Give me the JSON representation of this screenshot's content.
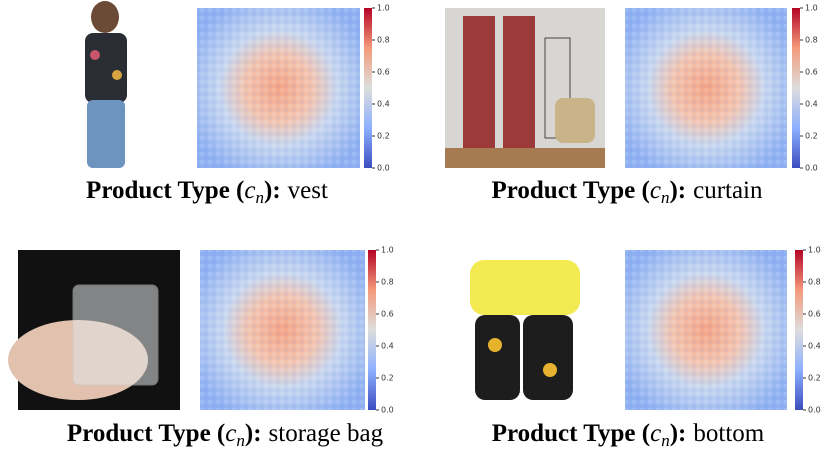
{
  "colorbar_ticks": [
    {
      "value": 0,
      "label": "0.0"
    },
    {
      "value": 0.2,
      "label": "0.2"
    },
    {
      "value": 0.4,
      "label": "0.4"
    },
    {
      "value": 0.6,
      "label": "0.6"
    },
    {
      "value": 0.8,
      "label": "0.8"
    },
    {
      "value": 1,
      "label": "1.0"
    }
  ],
  "panels": [
    {
      "caption": {
        "prefix": "Product Type (",
        "symbol": "c",
        "subscript": "n",
        "suffix": "):",
        "value": "vest"
      }
    },
    {
      "caption": {
        "prefix": "Product Type (",
        "symbol": "c",
        "subscript": "n",
        "suffix": "):",
        "value": "curtain"
      }
    },
    {
      "caption": {
        "prefix": "Product Type (",
        "symbol": "c",
        "subscript": "n",
        "suffix": "):",
        "value": "storage bag"
      }
    },
    {
      "caption": {
        "prefix": "Product Type (",
        "symbol": "c",
        "subscript": "n",
        "suffix": "):",
        "value": "bottom"
      }
    }
  ]
}
